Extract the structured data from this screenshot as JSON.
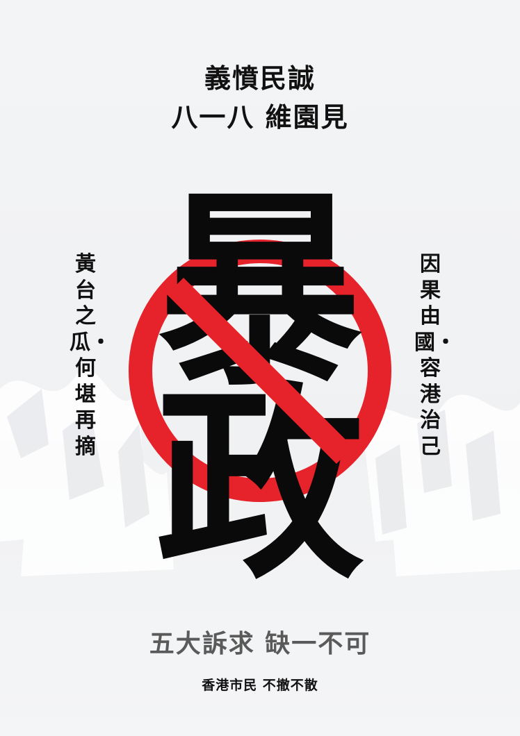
{
  "poster": {
    "headline_line1": "義憤民誠",
    "headline_line2": "八一八 維園見",
    "left_vertical": "黃台之瓜・何堪再摘",
    "right_vertical": "因果由國・容港治己",
    "big_char_top": "暴",
    "big_char_bottom": "政",
    "demand_text": "五大訴求 缺一不可",
    "footer_text": "香港市民 不撤不散"
  },
  "colors": {
    "background": "#f2f3f5",
    "ban_red": "#e6222a",
    "text_dark": "#111111",
    "demand_gray": "#5a5a5a"
  },
  "icons": {
    "ban_sign": "prohibition-sign-icon"
  }
}
